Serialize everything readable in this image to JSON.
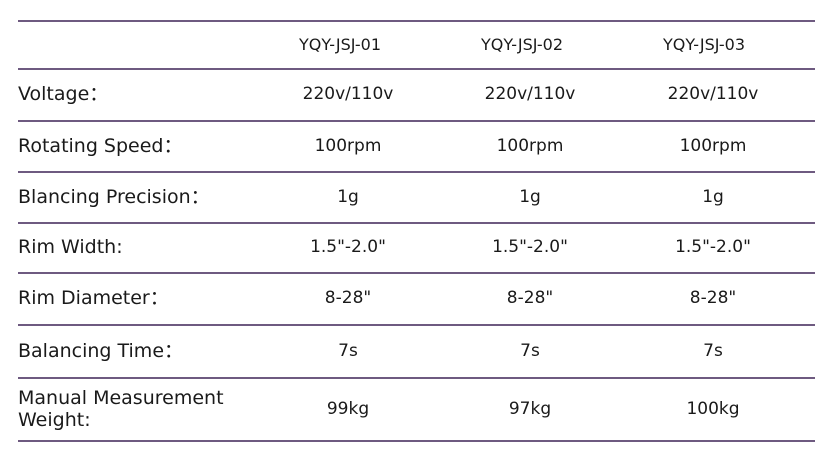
{
  "table": {
    "header": [
      "YQY-JSJ-01",
      "YQY-JSJ-02",
      "YQY-JSJ-03"
    ],
    "rows": [
      [
        "Voltage：",
        "220v/110v",
        "220v/110v",
        "220v/110v"
      ],
      [
        "Rotating Speed：",
        "100rpm",
        "100rpm",
        "100rpm"
      ],
      [
        "Blancing Precision：",
        "1g",
        "1g",
        "1g"
      ],
      [
        "Rim Width:",
        "1.5\"-2.0\"",
        "1.5\"-2.0\"",
        "1.5\"-2.0\""
      ],
      [
        "Rim Diameter：",
        "8-28\"",
        "8-28\"",
        "8-28\""
      ],
      [
        "Balancing Time：",
        "7s",
        "7s",
        "7s"
      ],
      [
        "Manual Measurement Weight:",
        "99kg",
        "97kg",
        "100kg"
      ]
    ]
  }
}
